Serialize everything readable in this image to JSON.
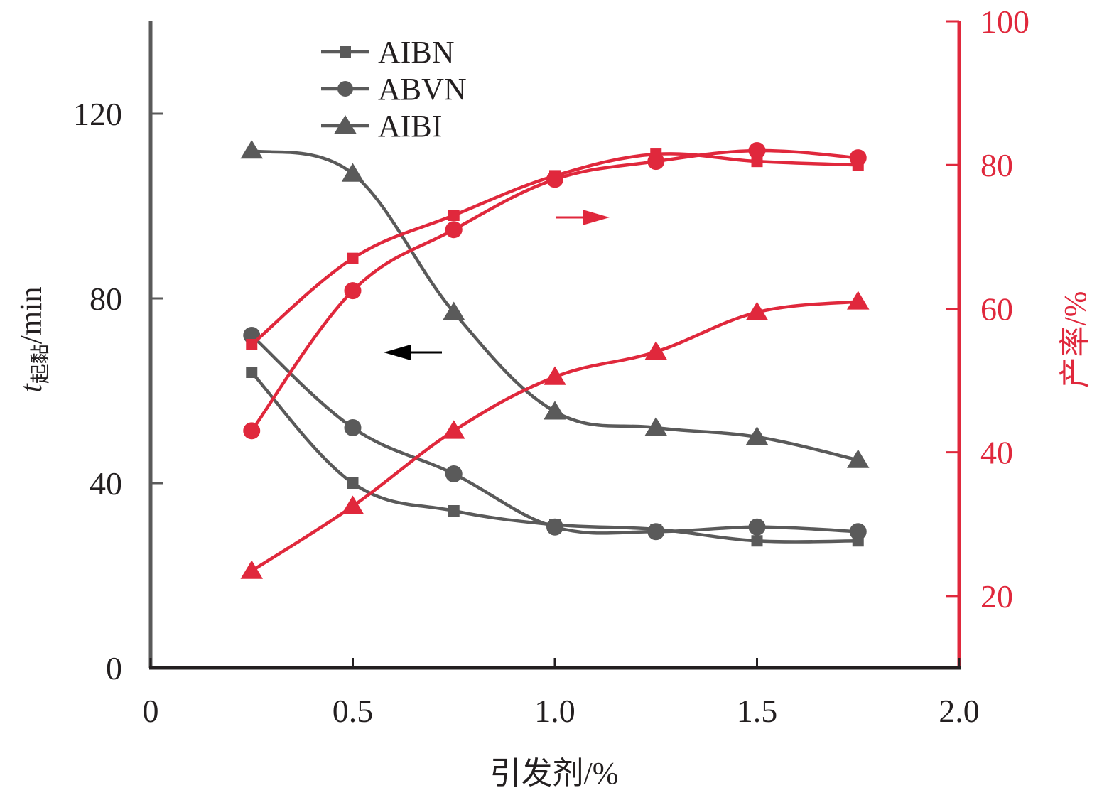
{
  "colors": {
    "left": "#5a5a5a",
    "right": "#e0283c",
    "axis": "#5a5a5a",
    "arrow_left": "#000000"
  },
  "chart_data": {
    "type": "line",
    "xlabel": "引发剂/%",
    "xlim": [
      0,
      2.0
    ],
    "xticks": [
      "0",
      "0.5",
      "1.0",
      "1.5",
      "2.0"
    ],
    "x": [
      0.25,
      0.5,
      0.75,
      1.0,
      1.25,
      1.5,
      1.75
    ],
    "ylabel_left": {
      "symbol": "t",
      "subscript": "起黏",
      "unit": "/min"
    },
    "ylim_left": [
      0,
      140
    ],
    "yticks_left": [
      "0",
      "40",
      "80",
      "120"
    ],
    "ylabel_right": "产率/%",
    "ylim_right": [
      10,
      100
    ],
    "yticks_right": [
      "20",
      "40",
      "60",
      "80",
      "100"
    ],
    "legend": [
      "AIBN",
      "ABVN",
      "AIBI"
    ],
    "series": [
      {
        "name": "AIBN",
        "axis": "left",
        "marker": "square",
        "values": [
          64,
          40,
          34,
          31,
          30,
          27.5,
          27.5
        ]
      },
      {
        "name": "ABVN",
        "axis": "left",
        "marker": "circle",
        "values": [
          72,
          52,
          42,
          30.5,
          29.5,
          30.5,
          29.5
        ]
      },
      {
        "name": "AIBI",
        "axis": "left",
        "marker": "triangle",
        "values": [
          112,
          107,
          77,
          55.5,
          52,
          50,
          45
        ]
      },
      {
        "name": "AIBN",
        "axis": "right",
        "marker": "square",
        "values": [
          55,
          67,
          73,
          78.5,
          81.5,
          80.5,
          80
        ]
      },
      {
        "name": "ABVN",
        "axis": "right",
        "marker": "circle",
        "values": [
          43,
          62.5,
          71,
          78,
          80.5,
          82,
          81
        ]
      },
      {
        "name": "AIBI",
        "axis": "right",
        "marker": "triangle",
        "values": [
          23.5,
          32.5,
          43,
          50.5,
          54,
          59.5,
          61
        ]
      }
    ]
  }
}
